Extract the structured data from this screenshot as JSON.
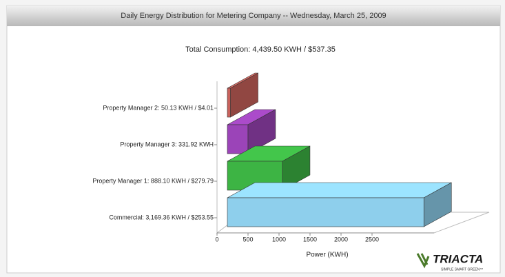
{
  "chart_data": {
    "type": "bar",
    "orientation": "horizontal",
    "title": "Daily Energy Distribution for Metering Company -- Wednesday, March 25, 2009",
    "subtitle": "Total Consumption: 4,439.50 KWH / $537.35",
    "categories": [
      "Property Manager 2: 50.13 KWH / $4.01",
      "Property Manager 3: 331.92 KWH",
      "Property Manager 1: 888.10 KWH / $279.79",
      "Commercial: 3,169.36 KWH / $253.55"
    ],
    "values": [
      50.13,
      331.92,
      888.1,
      3169.36
    ],
    "colors": [
      "#c9625c",
      "#9b44b8",
      "#3db444",
      "#8ecfec"
    ],
    "xlabel": "Power (KWH)",
    "xlim": [
      0,
      3500
    ],
    "xticks": [
      0,
      500,
      1000,
      1500,
      2000,
      2500
    ]
  },
  "logo": {
    "name": "TRIACTA",
    "tagline": "SIMPLE SMART GREEN™"
  }
}
